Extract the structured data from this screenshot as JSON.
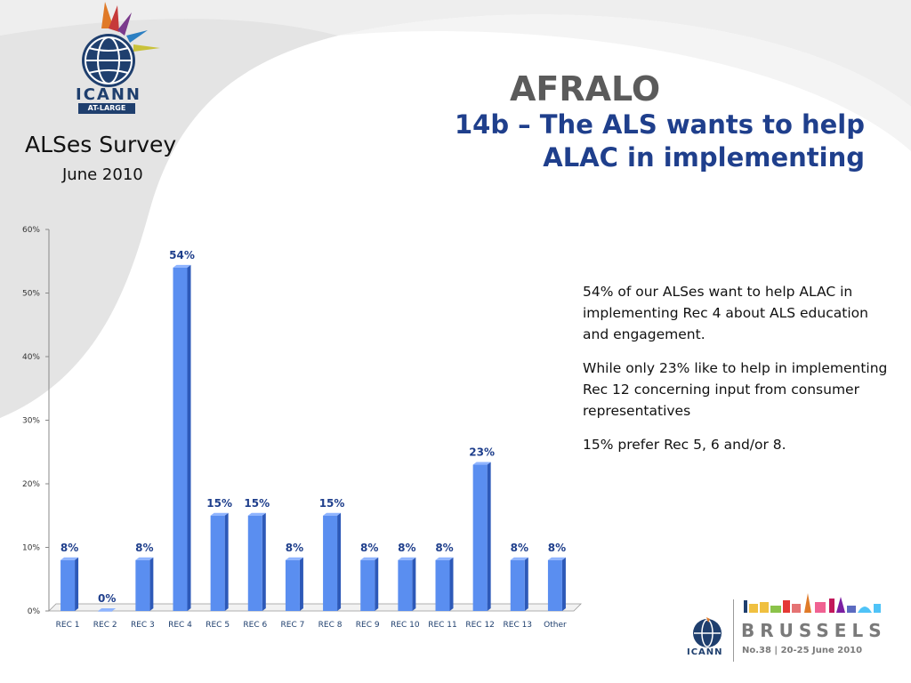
{
  "header": {
    "org": "ICANN",
    "org_sub": "AT-LARGE",
    "survey_title": "ALSes Survey",
    "survey_date": "June 2010",
    "main_title": "AFRALO",
    "subtitle_line1": "14b – The ALS wants to help",
    "subtitle_line2": "ALAC in implementing"
  },
  "notes": {
    "p1": "54% of our ALSes want to help ALAC in implementing Rec 4 about ALS education and engagement.",
    "p2": "While only 23% like to help in implementing Rec 12 concerning input from consumer representatives",
    "p3": "15% prefer Rec 5, 6 and/or 8."
  },
  "footer": {
    "org": "ICANN",
    "city": "BRUSSELS",
    "meeting": "No.38  |  20-25 June 2010"
  },
  "colors": {
    "bar_front": "#5a8ef0",
    "bar_side": "#2d59b8",
    "bar_top": "#8fb4ff",
    "title_blue": "#1f3f8c",
    "label_blue": "#1f3f8c"
  },
  "chart_data": {
    "type": "bar",
    "categories": [
      "REC  1",
      "REC  2",
      "REC  3",
      "REC  4",
      "REC  5",
      "REC  6",
      "REC  7",
      "REC  8",
      "REC  9",
      "REC 10",
      "REC 11",
      "REC 12",
      "REC 13",
      "Other"
    ],
    "values": [
      8,
      0,
      8,
      54,
      15,
      15,
      8,
      15,
      8,
      8,
      8,
      23,
      8,
      8
    ],
    "data_labels": [
      "8%",
      "0%",
      "8%",
      "54%",
      "15%",
      "15%",
      "8%",
      "15%",
      "8%",
      "8%",
      "8%",
      "23%",
      "8%",
      "8%"
    ],
    "yticks": [
      "0%",
      "10%",
      "20%",
      "30%",
      "40%",
      "50%",
      "60%"
    ],
    "ylim": [
      0,
      60
    ],
    "grid": false,
    "legend": "none"
  }
}
